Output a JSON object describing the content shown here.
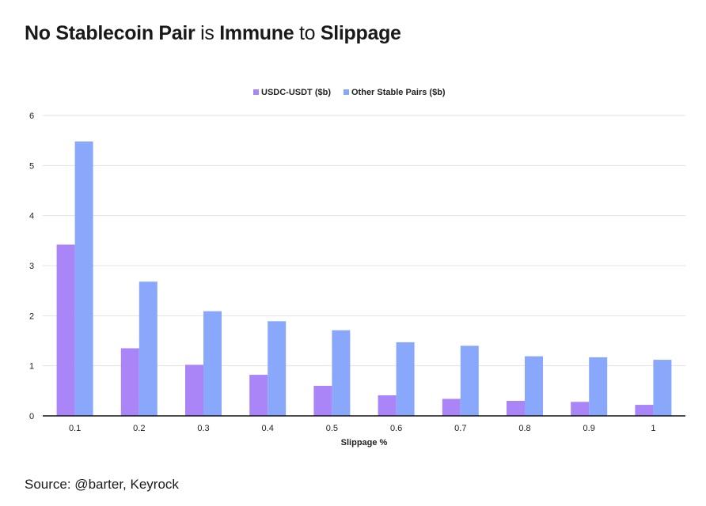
{
  "title_parts": [
    {
      "text": "No Stablecoin Pair",
      "weight": "b"
    },
    {
      "text": " is ",
      "weight": "n"
    },
    {
      "text": "Immune",
      "weight": "b"
    },
    {
      "text": " to ",
      "weight": "n"
    },
    {
      "text": "Slippage",
      "weight": "b"
    }
  ],
  "source": "Source: @barter, Keyrock",
  "colors": {
    "usdc_usdt": "#a985f7",
    "other": "#8aa8fb",
    "grid": "#e3e3e3",
    "axis": "#111111"
  },
  "chart_data": {
    "type": "bar",
    "title": "No Stablecoin Pair is Immune to Slippage",
    "xlabel": "Slippage %",
    "ylabel": "",
    "ylim": [
      0,
      6
    ],
    "yticks": [
      0,
      1,
      2,
      3,
      4,
      5,
      6
    ],
    "grid": true,
    "legend_position": "top-center",
    "categories": [
      "0.1",
      "0.2",
      "0.3",
      "0.4",
      "0.5",
      "0.6",
      "0.7",
      "0.8",
      "0.9",
      "1"
    ],
    "series": [
      {
        "name": "USDC-USDT ($b)",
        "color": "#a985f7",
        "values": [
          3.42,
          1.35,
          1.02,
          0.82,
          0.6,
          0.41,
          0.34,
          0.3,
          0.28,
          0.22
        ]
      },
      {
        "name": "Other Stable Pairs ($b)",
        "color": "#8aa8fb",
        "values": [
          5.48,
          2.68,
          2.09,
          1.89,
          1.71,
          1.47,
          1.4,
          1.19,
          1.17,
          1.12
        ]
      }
    ]
  }
}
